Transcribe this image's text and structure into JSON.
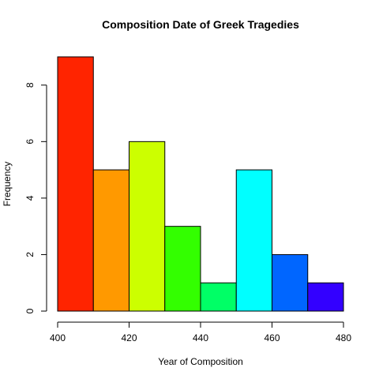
{
  "chart_data": {
    "type": "bar",
    "title": "Composition Date of Greek Tragedies",
    "xlabel": "Year of Composition",
    "ylabel": "Frequency",
    "bins": [
      {
        "start": 400,
        "end": 410,
        "value": 9,
        "color": "#ff2400"
      },
      {
        "start": 410,
        "end": 420,
        "value": 5,
        "color": "#ff9900"
      },
      {
        "start": 420,
        "end": 430,
        "value": 6,
        "color": "#ccff00"
      },
      {
        "start": 430,
        "end": 440,
        "value": 3,
        "color": "#33ff00"
      },
      {
        "start": 440,
        "end": 450,
        "value": 1,
        "color": "#00ff66"
      },
      {
        "start": 450,
        "end": 460,
        "value": 5,
        "color": "#00ffff"
      },
      {
        "start": 460,
        "end": 470,
        "value": 2,
        "color": "#0066ff"
      },
      {
        "start": 470,
        "end": 480,
        "value": 1,
        "color": "#3300ff"
      }
    ],
    "xlim": [
      400,
      480
    ],
    "ylim": [
      0,
      9
    ],
    "x_ticks": [
      400,
      420,
      440,
      460,
      480
    ],
    "y_ticks": [
      0,
      2,
      4,
      6,
      8
    ],
    "grid": false,
    "legend": "none"
  }
}
